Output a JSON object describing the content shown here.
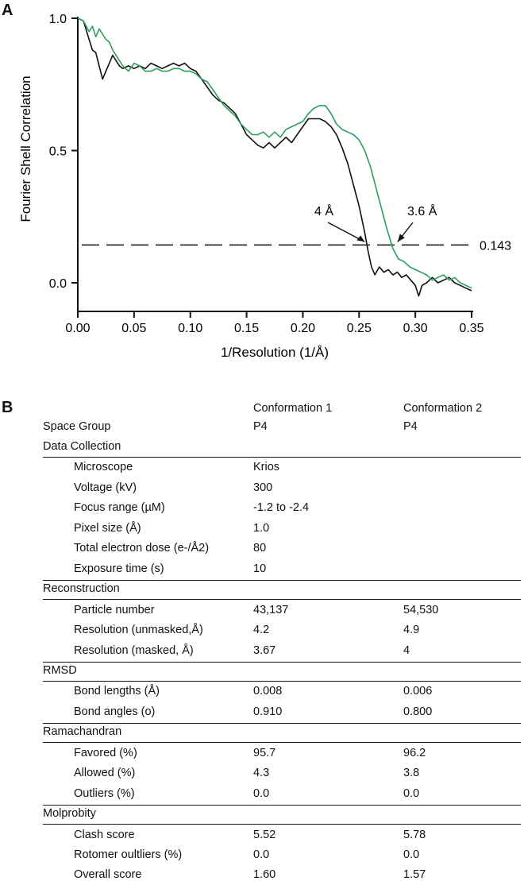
{
  "panels": {
    "a": "A",
    "b": "B"
  },
  "chart_data": {
    "type": "line",
    "xlabel": "1/Resolution (1/Å)",
    "ylabel": "Fourier Shell Correlation",
    "xlim": [
      0,
      0.35
    ],
    "ylim": [
      -0.1,
      1.0
    ],
    "x_ticks": [
      "0.00",
      "0.05",
      "0.10",
      "0.15",
      "0.20",
      "0.25",
      "0.30",
      "0.35"
    ],
    "x_tick_values": [
      0,
      0.05,
      0.1,
      0.15,
      0.2,
      0.25,
      0.3,
      0.35
    ],
    "y_ticks": [
      "1.0",
      "0.5",
      "0.0"
    ],
    "y_tick_values": [
      1.0,
      0.5,
      0.0
    ],
    "threshold": {
      "value": 0.143,
      "label": "0.143"
    },
    "annotations": [
      {
        "text": "4 Å",
        "x": 0.257,
        "y": 0.143
      },
      {
        "text": "3.6 Å",
        "x": 0.28,
        "y": 0.143
      }
    ],
    "series": [
      {
        "color": "#111111",
        "points": [
          [
            0,
            1.0
          ],
          [
            0.005,
            0.99
          ],
          [
            0.01,
            0.92
          ],
          [
            0.013,
            0.88
          ],
          [
            0.016,
            0.87
          ],
          [
            0.019,
            0.82
          ],
          [
            0.022,
            0.77
          ],
          [
            0.025,
            0.8
          ],
          [
            0.028,
            0.83
          ],
          [
            0.031,
            0.86
          ],
          [
            0.034,
            0.84
          ],
          [
            0.037,
            0.82
          ],
          [
            0.04,
            0.81
          ],
          [
            0.045,
            0.82
          ],
          [
            0.05,
            0.81
          ],
          [
            0.055,
            0.82
          ],
          [
            0.06,
            0.81
          ],
          [
            0.065,
            0.83
          ],
          [
            0.07,
            0.82
          ],
          [
            0.075,
            0.81
          ],
          [
            0.08,
            0.82
          ],
          [
            0.085,
            0.83
          ],
          [
            0.09,
            0.82
          ],
          [
            0.095,
            0.83
          ],
          [
            0.1,
            0.81
          ],
          [
            0.105,
            0.8
          ],
          [
            0.11,
            0.77
          ],
          [
            0.115,
            0.74
          ],
          [
            0.12,
            0.71
          ],
          [
            0.125,
            0.69
          ],
          [
            0.13,
            0.68
          ],
          [
            0.135,
            0.66
          ],
          [
            0.14,
            0.64
          ],
          [
            0.145,
            0.6
          ],
          [
            0.15,
            0.56
          ],
          [
            0.155,
            0.54
          ],
          [
            0.16,
            0.52
          ],
          [
            0.165,
            0.51
          ],
          [
            0.17,
            0.53
          ],
          [
            0.175,
            0.51
          ],
          [
            0.18,
            0.53
          ],
          [
            0.185,
            0.55
          ],
          [
            0.19,
            0.53
          ],
          [
            0.195,
            0.56
          ],
          [
            0.2,
            0.59
          ],
          [
            0.205,
            0.62
          ],
          [
            0.21,
            0.62
          ],
          [
            0.215,
            0.62
          ],
          [
            0.22,
            0.61
          ],
          [
            0.225,
            0.59
          ],
          [
            0.23,
            0.56
          ],
          [
            0.235,
            0.51
          ],
          [
            0.24,
            0.45
          ],
          [
            0.245,
            0.37
          ],
          [
            0.25,
            0.29
          ],
          [
            0.255,
            0.19
          ],
          [
            0.258,
            0.12
          ],
          [
            0.261,
            0.06
          ],
          [
            0.264,
            0.03
          ],
          [
            0.268,
            0.06
          ],
          [
            0.272,
            0.04
          ],
          [
            0.276,
            0.05
          ],
          [
            0.28,
            0.03
          ],
          [
            0.284,
            0.04
          ],
          [
            0.288,
            0.02
          ],
          [
            0.292,
            0.03
          ],
          [
            0.296,
            0.01
          ],
          [
            0.3,
            -0.01
          ],
          [
            0.303,
            -0.05
          ],
          [
            0.306,
            -0.01
          ],
          [
            0.31,
            0.0
          ],
          [
            0.315,
            0.02
          ],
          [
            0.32,
            0.0
          ],
          [
            0.325,
            0.01
          ],
          [
            0.33,
            0.02
          ],
          [
            0.335,
            0.0
          ],
          [
            0.34,
            -0.01
          ],
          [
            0.345,
            -0.02
          ],
          [
            0.35,
            -0.03
          ]
        ]
      },
      {
        "color": "#2e9e5e",
        "points": [
          [
            0,
            1.0
          ],
          [
            0.005,
            0.99
          ],
          [
            0.01,
            0.95
          ],
          [
            0.013,
            0.97
          ],
          [
            0.016,
            0.93
          ],
          [
            0.019,
            0.96
          ],
          [
            0.022,
            0.94
          ],
          [
            0.025,
            0.92
          ],
          [
            0.028,
            0.91
          ],
          [
            0.031,
            0.88
          ],
          [
            0.034,
            0.86
          ],
          [
            0.037,
            0.84
          ],
          [
            0.04,
            0.82
          ],
          [
            0.045,
            0.8
          ],
          [
            0.05,
            0.83
          ],
          [
            0.055,
            0.82
          ],
          [
            0.06,
            0.8
          ],
          [
            0.065,
            0.8
          ],
          [
            0.07,
            0.81
          ],
          [
            0.075,
            0.8
          ],
          [
            0.08,
            0.8
          ],
          [
            0.085,
            0.81
          ],
          [
            0.09,
            0.81
          ],
          [
            0.095,
            0.8
          ],
          [
            0.1,
            0.8
          ],
          [
            0.105,
            0.79
          ],
          [
            0.11,
            0.77
          ],
          [
            0.115,
            0.76
          ],
          [
            0.12,
            0.73
          ],
          [
            0.125,
            0.7
          ],
          [
            0.13,
            0.67
          ],
          [
            0.135,
            0.65
          ],
          [
            0.14,
            0.63
          ],
          [
            0.145,
            0.6
          ],
          [
            0.15,
            0.58
          ],
          [
            0.155,
            0.56
          ],
          [
            0.16,
            0.56
          ],
          [
            0.165,
            0.57
          ],
          [
            0.17,
            0.55
          ],
          [
            0.175,
            0.57
          ],
          [
            0.18,
            0.55
          ],
          [
            0.185,
            0.58
          ],
          [
            0.19,
            0.59
          ],
          [
            0.195,
            0.6
          ],
          [
            0.2,
            0.61
          ],
          [
            0.205,
            0.64
          ],
          [
            0.21,
            0.66
          ],
          [
            0.215,
            0.67
          ],
          [
            0.22,
            0.67
          ],
          [
            0.225,
            0.64
          ],
          [
            0.23,
            0.6
          ],
          [
            0.235,
            0.58
          ],
          [
            0.24,
            0.57
          ],
          [
            0.245,
            0.56
          ],
          [
            0.25,
            0.54
          ],
          [
            0.255,
            0.5
          ],
          [
            0.26,
            0.44
          ],
          [
            0.265,
            0.36
          ],
          [
            0.27,
            0.28
          ],
          [
            0.275,
            0.2
          ],
          [
            0.28,
            0.13
          ],
          [
            0.285,
            0.09
          ],
          [
            0.29,
            0.08
          ],
          [
            0.295,
            0.06
          ],
          [
            0.3,
            0.05
          ],
          [
            0.305,
            0.04
          ],
          [
            0.31,
            0.03
          ],
          [
            0.315,
            0.01
          ],
          [
            0.32,
            0.02
          ],
          [
            0.325,
            0.03
          ],
          [
            0.33,
            0.01
          ],
          [
            0.335,
            0.02
          ],
          [
            0.34,
            0.0
          ],
          [
            0.345,
            -0.01
          ],
          [
            0.35,
            -0.02
          ]
        ]
      }
    ]
  },
  "table": {
    "col_headers": [
      "Conformation 1",
      "Conformation 2"
    ],
    "space_group": {
      "label": "Space Group",
      "c1": "P4",
      "c2": "P4"
    },
    "sections": [
      {
        "title": "Data Collection",
        "rows": [
          {
            "label": "Microscope",
            "c1": "Krios",
            "c2": ""
          },
          {
            "label": "Voltage (kV)",
            "c1": "300",
            "c2": ""
          },
          {
            "label": "Focus range (µM)",
            "c1": "-1.2 to -2.4",
            "c2": ""
          },
          {
            "label": "Pixel size (Å)",
            "c1": "1.0",
            "c2": ""
          },
          {
            "label": "Total electron dose (e-/Å2)",
            "c1": "80",
            "c2": ""
          },
          {
            "label": "Exposure time (s)",
            "c1": "10",
            "c2": ""
          }
        ]
      },
      {
        "title": "Reconstruction",
        "rows": [
          {
            "label": "Particle number",
            "c1": "43,137",
            "c2": "54,530"
          },
          {
            "label": "Resolution (unmasked,Å)",
            "c1": "4.2",
            "c2": "4.9"
          },
          {
            "label": "Resolution (masked, Å)",
            "c1": "3.67",
            "c2": "4"
          }
        ]
      },
      {
        "title": "RMSD",
        "rows": [
          {
            "label": "Bond lengths (Å)",
            "c1": "0.008",
            "c2": "0.006"
          },
          {
            "label": "Bond angles (o)",
            "c1": "0.910",
            "c2": "0.800"
          }
        ]
      },
      {
        "title": "Ramachandran",
        "rows": [
          {
            "label": "Favored (%)",
            "c1": "95.7",
            "c2": "96.2"
          },
          {
            "label": "Allowed (%)",
            "c1": "4.3",
            "c2": "3.8"
          },
          {
            "label": "Outliers (%)",
            "c1": "0.0",
            "c2": "0.0"
          }
        ]
      },
      {
        "title": "Molprobity",
        "rows": [
          {
            "label": "Clash score",
            "c1": "5.52",
            "c2": "5.78"
          },
          {
            "label": "Rotomer oultliers (%)",
            "c1": "0.0",
            "c2": "0.0"
          },
          {
            "label": "Overall score",
            "c1": "1.60",
            "c2": "1.57"
          }
        ]
      }
    ]
  }
}
